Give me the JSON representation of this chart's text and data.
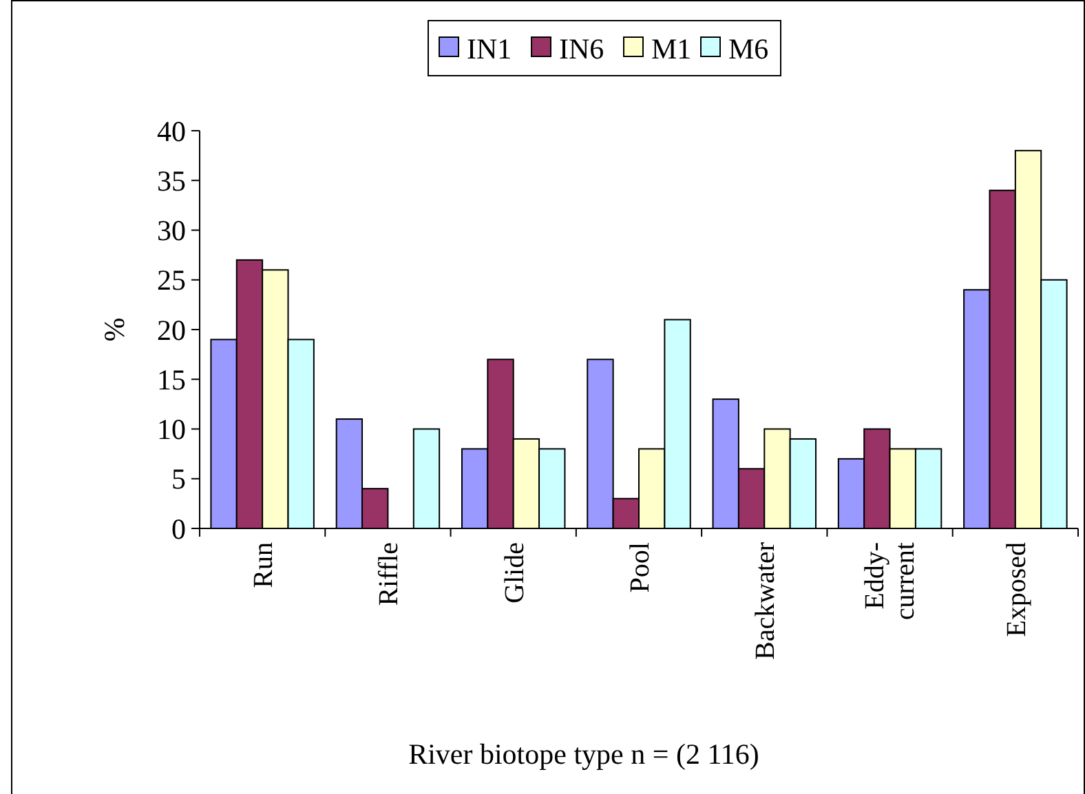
{
  "chart_data": {
    "type": "bar",
    "xlabel": "River biotope type n = (2 116)",
    "ylabel": "%",
    "categories": [
      "Run",
      "Riffle",
      "Glide",
      "Pool",
      "Backwater",
      "Eddy-current",
      "Exposed"
    ],
    "series": [
      {
        "name": "IN1",
        "color": "#9999ff",
        "values": [
          19,
          11,
          8,
          17,
          13,
          7,
          24
        ]
      },
      {
        "name": "IN6",
        "color": "#993366",
        "values": [
          27,
          4,
          17,
          3,
          6,
          10,
          34
        ]
      },
      {
        "name": "M1",
        "color": "#ffffcc",
        "values": [
          26,
          0,
          9,
          8,
          10,
          8,
          38
        ]
      },
      {
        "name": "M6",
        "color": "#ccffff",
        "values": [
          19,
          10,
          8,
          21,
          9,
          8,
          25
        ]
      }
    ],
    "ylim": [
      0,
      40
    ],
    "yticks": [
      0,
      5,
      10,
      15,
      20,
      25,
      30,
      35,
      40
    ],
    "grid": false,
    "legend": "top"
  }
}
